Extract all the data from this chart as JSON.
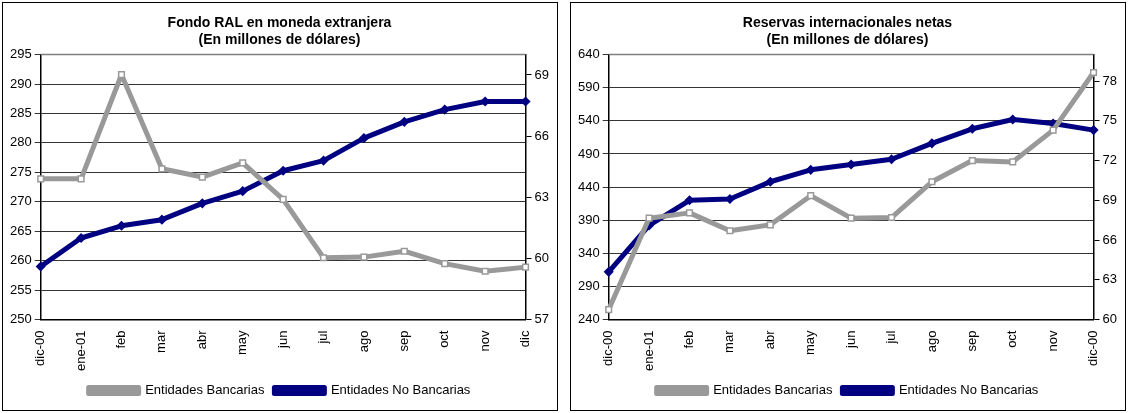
{
  "chart_data": [
    {
      "type": "line",
      "title": "Fondo RAL en moneda extranjera\n(En millones de dólares)",
      "categories": [
        "dic-00",
        "ene-01",
        "feb",
        "mar",
        "abr",
        "may",
        "jun",
        "jul",
        "ago",
        "sep",
        "oct",
        "nov",
        "dic"
      ],
      "series": [
        {
          "name": "Entidades Bancarias",
          "color": "#999999",
          "marker": "square",
          "values": [
            273.9,
            273.9,
            291.6,
            275.6,
            274.2,
            276.6,
            270.4,
            260.5,
            260.6,
            261.6,
            259.5,
            258.2,
            258.9
          ]
        },
        {
          "name": "Entidades No Bancarias",
          "color": "#000080",
          "marker": "diamond",
          "axis": "y2",
          "values": [
            59.6,
            61.0,
            61.6,
            61.9,
            62.7,
            63.3,
            64.3,
            64.8,
            65.9,
            66.7,
            67.3,
            67.7,
            67.7
          ]
        }
      ],
      "ylim": [
        250,
        295
      ],
      "yticks": [
        250,
        255,
        260,
        265,
        270,
        275,
        280,
        285,
        290,
        295
      ],
      "y2lim": [
        57,
        70
      ],
      "y2ticks": [
        57,
        60,
        63,
        66,
        69
      ],
      "grid": "y",
      "legend": "bottom",
      "line_style": "solid"
    },
    {
      "type": "line",
      "title": "Reservas internacionales netas\n(En millones de dólares)",
      "categories": [
        "dic-00",
        "ene-01",
        "feb",
        "mar",
        "abr",
        "may",
        "jun",
        "jul",
        "ago",
        "sep",
        "oct",
        "nov",
        "dic-00"
      ],
      "series": [
        {
          "name": "Entidades Bancarias",
          "color": "#999999",
          "marker": "square",
          "values": [
            255,
            393,
            401,
            374,
            383,
            427,
            393,
            394,
            448,
            480,
            478,
            526,
            613
          ]
        },
        {
          "name": "Entidades No Bancarias",
          "color": "#000080",
          "marker": "diamond",
          "axis": "y2",
          "values": [
            63.6,
            67.1,
            69.0,
            69.1,
            70.4,
            71.3,
            71.7,
            72.1,
            73.3,
            74.4,
            75.1,
            74.8,
            74.3
          ]
        }
      ],
      "ylim": [
        240,
        640
      ],
      "yticks": [
        240,
        290,
        340,
        390,
        440,
        490,
        540,
        590,
        640
      ],
      "y2lim": [
        60,
        80
      ],
      "y2ticks": [
        60,
        63,
        66,
        69,
        72,
        75,
        78
      ],
      "grid": "y",
      "legend": "bottom",
      "line_style": "solid"
    }
  ]
}
